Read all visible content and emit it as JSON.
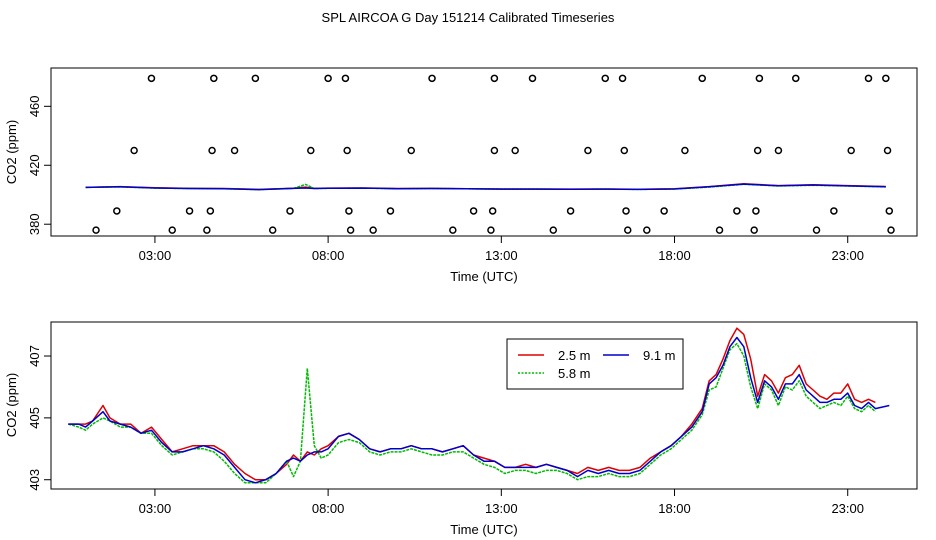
{
  "figure_title": "SPL AIRCOA G  Day 151214  Calibrated Timeseries",
  "chart_data": [
    {
      "type": "scatter",
      "panel": "top",
      "xlabel": "Time (UTC)",
      "ylabel": "CO2 (ppm)",
      "xlim": [
        0,
        25
      ],
      "ylim": [
        372,
        486
      ],
      "x_ticks": [
        3,
        8,
        13,
        18,
        23
      ],
      "x_tick_labels": [
        "03:00",
        "08:00",
        "13:00",
        "18:00",
        "23:00"
      ],
      "y_ticks": [
        380,
        420,
        460
      ],
      "y_tick_labels": [
        "380",
        "420",
        "460"
      ],
      "marker_points": [
        {
          "x": 1.3,
          "y": 376
        },
        {
          "x": 1.9,
          "y": 389
        },
        {
          "x": 2.4,
          "y": 430
        },
        {
          "x": 2.9,
          "y": 479
        },
        {
          "x": 3.5,
          "y": 376
        },
        {
          "x": 4.0,
          "y": 389
        },
        {
          "x": 4.5,
          "y": 376
        },
        {
          "x": 4.6,
          "y": 389
        },
        {
          "x": 4.65,
          "y": 430
        },
        {
          "x": 4.7,
          "y": 479
        },
        {
          "x": 5.3,
          "y": 430
        },
        {
          "x": 5.9,
          "y": 479
        },
        {
          "x": 6.4,
          "y": 376
        },
        {
          "x": 6.9,
          "y": 389
        },
        {
          "x": 7.5,
          "y": 430
        },
        {
          "x": 8.0,
          "y": 479
        },
        {
          "x": 8.5,
          "y": 479
        },
        {
          "x": 8.55,
          "y": 430
        },
        {
          "x": 8.6,
          "y": 389
        },
        {
          "x": 8.65,
          "y": 376
        },
        {
          "x": 9.3,
          "y": 376
        },
        {
          "x": 9.8,
          "y": 389
        },
        {
          "x": 10.4,
          "y": 430
        },
        {
          "x": 11.0,
          "y": 479
        },
        {
          "x": 11.6,
          "y": 376
        },
        {
          "x": 12.2,
          "y": 389
        },
        {
          "x": 12.7,
          "y": 376
        },
        {
          "x": 12.75,
          "y": 389
        },
        {
          "x": 12.8,
          "y": 430
        },
        {
          "x": 12.8,
          "y": 479
        },
        {
          "x": 13.4,
          "y": 430
        },
        {
          "x": 13.9,
          "y": 479
        },
        {
          "x": 14.5,
          "y": 376
        },
        {
          "x": 15.0,
          "y": 389
        },
        {
          "x": 15.5,
          "y": 430
        },
        {
          "x": 16.0,
          "y": 479
        },
        {
          "x": 16.5,
          "y": 479
        },
        {
          "x": 16.55,
          "y": 430
        },
        {
          "x": 16.6,
          "y": 389
        },
        {
          "x": 16.65,
          "y": 376
        },
        {
          "x": 17.2,
          "y": 376
        },
        {
          "x": 17.7,
          "y": 389
        },
        {
          "x": 18.3,
          "y": 430
        },
        {
          "x": 18.8,
          "y": 479
        },
        {
          "x": 19.3,
          "y": 376
        },
        {
          "x": 19.8,
          "y": 389
        },
        {
          "x": 20.3,
          "y": 376
        },
        {
          "x": 20.35,
          "y": 389
        },
        {
          "x": 20.4,
          "y": 430
        },
        {
          "x": 20.45,
          "y": 479
        },
        {
          "x": 21.0,
          "y": 430
        },
        {
          "x": 21.5,
          "y": 479
        },
        {
          "x": 22.1,
          "y": 376
        },
        {
          "x": 22.6,
          "y": 389
        },
        {
          "x": 23.1,
          "y": 430
        },
        {
          "x": 23.6,
          "y": 479
        },
        {
          "x": 24.1,
          "y": 479
        },
        {
          "x": 24.15,
          "y": 430
        },
        {
          "x": 24.2,
          "y": 389
        },
        {
          "x": 24.25,
          "y": 376
        }
      ],
      "series": [
        {
          "name": "2.5 m",
          "color": "#dd0000",
          "x": [
            1,
            2,
            3,
            4,
            5,
            6,
            7,
            7.35,
            7.6,
            8,
            9,
            10,
            11,
            12,
            13,
            14,
            15,
            16,
            17,
            18,
            19,
            20,
            21,
            22,
            23,
            24.1
          ],
          "values": [
            405,
            405.5,
            404.8,
            404.3,
            404.2,
            403.6,
            404.4,
            405.2,
            404.3,
            404.5,
            404.6,
            404.2,
            404.3,
            404.1,
            403.9,
            403.9,
            403.8,
            403.9,
            403.7,
            404,
            405.5,
            407.4,
            406.2,
            406.8,
            406.2,
            405.6
          ]
        },
        {
          "name": "5.8 m",
          "color": "#00bb00",
          "x": [
            1,
            2,
            3,
            4,
            5,
            6,
            7,
            7.35,
            7.6,
            8,
            9,
            10,
            11,
            12,
            13,
            14,
            15,
            16,
            17,
            18,
            19,
            20,
            21,
            22,
            23,
            24.1
          ],
          "values": [
            405,
            405.3,
            404.5,
            404.2,
            404.1,
            403.5,
            404.3,
            407,
            404.2,
            404.4,
            404.5,
            404.1,
            404.2,
            404,
            403.8,
            403.8,
            403.7,
            403.8,
            403.6,
            403.9,
            405.2,
            407.1,
            405.9,
            406.4,
            405.9,
            405.3
          ]
        },
        {
          "name": "9.1 m",
          "color": "#0000cc",
          "x": [
            1,
            2,
            3,
            4,
            5,
            6,
            7,
            7.35,
            7.6,
            8,
            9,
            10,
            11,
            12,
            13,
            14,
            15,
            16,
            17,
            18,
            19,
            20,
            21,
            22,
            23,
            24.1
          ],
          "values": [
            405,
            405.4,
            404.6,
            404.2,
            404.1,
            403.5,
            404.3,
            404.6,
            404.2,
            404.4,
            404.5,
            404.1,
            404.2,
            404,
            403.8,
            403.8,
            403.7,
            403.8,
            403.6,
            403.9,
            405.4,
            407.2,
            406.1,
            406.6,
            406,
            405.4
          ]
        }
      ]
    },
    {
      "type": "line",
      "panel": "bottom",
      "xlabel": "Time (UTC)",
      "ylabel": "CO2 (ppm)",
      "xlim": [
        0,
        25
      ],
      "ylim": [
        402.7,
        408.1
      ],
      "x_ticks": [
        3,
        8,
        13,
        18,
        23
      ],
      "x_tick_labels": [
        "03:00",
        "08:00",
        "13:00",
        "18:00",
        "23:00"
      ],
      "y_ticks": [
        403,
        405,
        407
      ],
      "y_tick_labels": [
        "403",
        "405",
        "407"
      ],
      "legend": {
        "position": "top-center",
        "entries": [
          "2.5 m",
          "9.1 m",
          "5.8 m"
        ]
      },
      "series": [
        {
          "name": "2.5 m",
          "color": "#dd0000",
          "x": [
            0.5,
            0.8,
            1.0,
            1.2,
            1.5,
            1.7,
            2.0,
            2.3,
            2.6,
            2.9,
            3.2,
            3.5,
            3.8,
            4.1,
            4.4,
            4.7,
            5.0,
            5.3,
            5.6,
            5.9,
            6.2,
            6.5,
            6.8,
            7.0,
            7.2,
            7.4,
            7.6,
            7.8,
            8.0,
            8.3,
            8.6,
            8.9,
            9.2,
            9.5,
            9.8,
            10.1,
            10.4,
            10.7,
            11.0,
            11.3,
            11.6,
            11.9,
            12.2,
            12.5,
            12.8,
            13.1,
            13.4,
            13.7,
            14.0,
            14.3,
            14.6,
            14.9,
            15.2,
            15.5,
            15.8,
            16.1,
            16.4,
            16.7,
            17.0,
            17.3,
            17.6,
            17.9,
            18.2,
            18.5,
            18.8,
            19.0,
            19.2,
            19.4,
            19.6,
            19.8,
            20.0,
            20.2,
            20.4,
            20.6,
            20.8,
            21.0,
            21.2,
            21.4,
            21.6,
            21.8,
            22.0,
            22.2,
            22.4,
            22.6,
            22.8,
            23.0,
            23.2,
            23.4,
            23.6,
            23.8
          ],
          "values": [
            404.8,
            404.8,
            404.8,
            404.9,
            405.4,
            405,
            404.8,
            404.8,
            404.5,
            404.7,
            404.3,
            403.9,
            404,
            404.1,
            404.1,
            404.1,
            403.9,
            403.5,
            403.2,
            403,
            403,
            403.2,
            403.5,
            403.8,
            403.6,
            403.9,
            403.8,
            404.0,
            404.1,
            404.4,
            404.5,
            404.3,
            404.0,
            403.9,
            404.0,
            404.0,
            404.1,
            404.0,
            404.0,
            403.9,
            404.0,
            404.1,
            403.8,
            403.7,
            403.6,
            403.4,
            403.4,
            403.5,
            403.4,
            403.5,
            403.4,
            403.3,
            403.2,
            403.4,
            403.3,
            403.4,
            403.3,
            403.3,
            403.4,
            403.7,
            403.9,
            404.1,
            404.4,
            404.8,
            405.3,
            406.2,
            406.4,
            406.9,
            407.5,
            407.9,
            407.7,
            406.9,
            405.7,
            406.4,
            406.2,
            405.8,
            406.3,
            406.4,
            406.7,
            406.1,
            405.9,
            405.7,
            405.6,
            405.8,
            405.8,
            406.1,
            405.6,
            405.5,
            405.6,
            405.5
          ]
        },
        {
          "name": "5.8 m",
          "color": "#00bb00",
          "x": [
            0.5,
            0.8,
            1.0,
            1.2,
            1.5,
            1.7,
            2.0,
            2.3,
            2.6,
            2.9,
            3.2,
            3.5,
            3.8,
            4.1,
            4.4,
            4.7,
            5.0,
            5.3,
            5.6,
            5.9,
            6.2,
            6.5,
            6.8,
            7.0,
            7.2,
            7.4,
            7.6,
            7.8,
            8.0,
            8.3,
            8.6,
            8.9,
            9.2,
            9.5,
            9.8,
            10.1,
            10.4,
            10.7,
            11.0,
            11.3,
            11.6,
            11.9,
            12.2,
            12.5,
            12.8,
            13.1,
            13.4,
            13.7,
            14.0,
            14.3,
            14.6,
            14.9,
            15.2,
            15.5,
            15.8,
            16.1,
            16.4,
            16.7,
            17.0,
            17.3,
            17.6,
            17.9,
            18.2,
            18.5,
            18.8,
            19.0,
            19.2,
            19.4,
            19.6,
            19.8,
            20.0,
            20.2,
            20.4,
            20.6,
            20.8,
            21.0,
            21.2,
            21.4,
            21.6,
            21.8,
            22.0,
            22.2,
            22.4,
            22.6,
            22.8,
            23.0,
            23.2,
            23.4,
            23.6,
            23.8
          ],
          "values": [
            404.8,
            404.7,
            404.6,
            404.8,
            405.0,
            404.9,
            404.7,
            404.7,
            404.5,
            404.5,
            404.1,
            403.8,
            403.9,
            404.0,
            404.0,
            403.9,
            403.6,
            403.2,
            402.9,
            402.9,
            402.9,
            403.2,
            403.6,
            403.1,
            403.6,
            406.6,
            404.1,
            403.7,
            403.8,
            404.2,
            404.3,
            404.2,
            403.9,
            403.8,
            403.9,
            403.9,
            404.0,
            403.9,
            403.8,
            403.8,
            403.9,
            403.9,
            403.7,
            403.5,
            403.4,
            403.2,
            403.3,
            403.3,
            403.2,
            403.3,
            403.3,
            403.2,
            403.0,
            403.1,
            403.1,
            403.2,
            403.1,
            403.1,
            403.2,
            403.5,
            403.8,
            404.0,
            404.3,
            404.6,
            405.1,
            405.9,
            406.0,
            406.6,
            407.2,
            407.4,
            407.0,
            406.0,
            405.3,
            406.1,
            405.9,
            405.4,
            406.0,
            405.9,
            406.2,
            405.7,
            405.5,
            405.3,
            405.4,
            405.5,
            405.4,
            405.7,
            405.3,
            405.2,
            405.4,
            405.2
          ]
        },
        {
          "name": "9.1 m",
          "color": "#0000cc",
          "x": [
            0.5,
            0.8,
            1.0,
            1.2,
            1.5,
            1.7,
            2.0,
            2.3,
            2.6,
            2.9,
            3.2,
            3.5,
            3.8,
            4.1,
            4.4,
            4.7,
            5.0,
            5.3,
            5.6,
            5.9,
            6.2,
            6.5,
            6.8,
            7.0,
            7.2,
            7.4,
            7.6,
            7.8,
            8.0,
            8.3,
            8.6,
            8.9,
            9.2,
            9.5,
            9.8,
            10.1,
            10.4,
            10.7,
            11.0,
            11.3,
            11.6,
            11.9,
            12.2,
            12.5,
            12.8,
            13.1,
            13.4,
            13.7,
            14.0,
            14.3,
            14.6,
            14.9,
            15.2,
            15.5,
            15.8,
            16.1,
            16.4,
            16.7,
            17.0,
            17.3,
            17.6,
            17.9,
            18.2,
            18.5,
            18.8,
            19.0,
            19.2,
            19.4,
            19.6,
            19.8,
            20.0,
            20.2,
            20.4,
            20.6,
            20.8,
            21.0,
            21.2,
            21.4,
            21.6,
            21.8,
            22.0,
            22.2,
            22.4,
            22.6,
            22.8,
            23.0,
            23.2,
            23.4,
            23.6,
            23.8,
            24.2
          ],
          "values": [
            404.8,
            404.8,
            404.7,
            404.9,
            405.2,
            404.9,
            404.8,
            404.7,
            404.5,
            404.6,
            404.2,
            403.9,
            403.9,
            404.0,
            404.1,
            404.0,
            403.8,
            403.4,
            403.0,
            402.9,
            403.0,
            403.2,
            403.6,
            403.7,
            403.6,
            403.8,
            403.9,
            403.9,
            404.0,
            404.4,
            404.5,
            404.3,
            404.0,
            403.9,
            404.0,
            404.0,
            404.1,
            404.0,
            404.0,
            403.9,
            404.0,
            404.1,
            403.8,
            403.6,
            403.6,
            403.4,
            403.4,
            403.4,
            403.4,
            403.5,
            403.4,
            403.3,
            403.1,
            403.3,
            403.2,
            403.3,
            403.2,
            403.2,
            403.3,
            403.6,
            403.9,
            404.1,
            404.4,
            404.7,
            405.2,
            406.1,
            406.3,
            406.7,
            407.3,
            407.6,
            407.3,
            406.3,
            405.5,
            406.2,
            406.0,
            405.6,
            406.1,
            406.1,
            406.4,
            405.9,
            405.7,
            405.5,
            405.5,
            405.6,
            405.6,
            405.8,
            405.4,
            405.3,
            405.5,
            405.3,
            405.4
          ]
        }
      ]
    }
  ]
}
